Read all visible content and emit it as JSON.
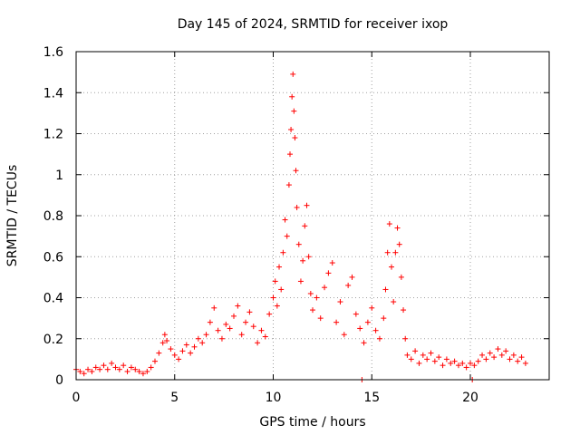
{
  "chart_data": {
    "type": "scatter",
    "title": "Day 145 of 2024, SRMTID for receiver ixop",
    "xlabel": "GPS time / hours",
    "ylabel": "SRMTID / TECUs",
    "xlim": [
      0,
      24
    ],
    "ylim": [
      0,
      1.6
    ],
    "xticks": [
      0,
      5,
      10,
      15,
      20
    ],
    "xtick_labels": [
      "0",
      "5",
      "10",
      "15",
      "20"
    ],
    "yticks": [
      0,
      0.2,
      0.4,
      0.6,
      0.8,
      1.0,
      1.2,
      1.4,
      1.6
    ],
    "ytick_labels": [
      "0",
      "0.2",
      "0.4",
      "0.6",
      "0.8",
      "1",
      "1.2",
      "1.4",
      "1.6"
    ],
    "grid": true,
    "marker": "plus",
    "color": "#ff0000",
    "series": [
      {
        "name": "SRMTID",
        "points": [
          [
            0.0,
            0.05
          ],
          [
            0.2,
            0.04
          ],
          [
            0.4,
            0.03
          ],
          [
            0.6,
            0.05
          ],
          [
            0.8,
            0.04
          ],
          [
            1.0,
            0.06
          ],
          [
            1.2,
            0.05
          ],
          [
            1.4,
            0.07
          ],
          [
            1.6,
            0.05
          ],
          [
            1.8,
            0.08
          ],
          [
            2.0,
            0.06
          ],
          [
            2.2,
            0.05
          ],
          [
            2.4,
            0.07
          ],
          [
            2.6,
            0.04
          ],
          [
            2.8,
            0.06
          ],
          [
            3.0,
            0.05
          ],
          [
            3.2,
            0.04
          ],
          [
            3.4,
            0.03
          ],
          [
            3.6,
            0.04
          ],
          [
            3.8,
            0.06
          ],
          [
            4.0,
            0.09
          ],
          [
            4.2,
            0.13
          ],
          [
            4.4,
            0.18
          ],
          [
            4.5,
            0.22
          ],
          [
            4.6,
            0.19
          ],
          [
            4.8,
            0.15
          ],
          [
            5.0,
            0.12
          ],
          [
            5.2,
            0.1
          ],
          [
            5.4,
            0.14
          ],
          [
            5.6,
            0.17
          ],
          [
            5.8,
            0.13
          ],
          [
            6.0,
            0.16
          ],
          [
            6.2,
            0.2
          ],
          [
            6.4,
            0.18
          ],
          [
            6.6,
            0.22
          ],
          [
            6.8,
            0.28
          ],
          [
            7.0,
            0.35
          ],
          [
            7.2,
            0.24
          ],
          [
            7.4,
            0.2
          ],
          [
            7.6,
            0.27
          ],
          [
            7.8,
            0.25
          ],
          [
            8.0,
            0.31
          ],
          [
            8.2,
            0.36
          ],
          [
            8.4,
            0.22
          ],
          [
            8.6,
            0.28
          ],
          [
            8.8,
            0.33
          ],
          [
            9.0,
            0.26
          ],
          [
            9.2,
            0.18
          ],
          [
            9.4,
            0.24
          ],
          [
            9.6,
            0.21
          ],
          [
            9.8,
            0.32
          ],
          [
            10.0,
            0.4
          ],
          [
            10.1,
            0.48
          ],
          [
            10.2,
            0.36
          ],
          [
            10.3,
            0.55
          ],
          [
            10.4,
            0.44
          ],
          [
            10.5,
            0.62
          ],
          [
            10.6,
            0.78
          ],
          [
            10.7,
            0.7
          ],
          [
            10.8,
            0.95
          ],
          [
            10.85,
            1.1
          ],
          [
            10.9,
            1.22
          ],
          [
            10.95,
            1.38
          ],
          [
            11.0,
            1.49
          ],
          [
            11.05,
            1.31
          ],
          [
            11.1,
            1.18
          ],
          [
            11.15,
            1.02
          ],
          [
            11.2,
            0.84
          ],
          [
            11.3,
            0.66
          ],
          [
            11.4,
            0.48
          ],
          [
            11.5,
            0.58
          ],
          [
            11.6,
            0.75
          ],
          [
            11.7,
            0.85
          ],
          [
            11.8,
            0.6
          ],
          [
            11.9,
            0.42
          ],
          [
            12.0,
            0.34
          ],
          [
            12.2,
            0.4
          ],
          [
            12.4,
            0.3
          ],
          [
            12.6,
            0.45
          ],
          [
            12.8,
            0.52
          ],
          [
            13.0,
            0.57
          ],
          [
            13.2,
            0.28
          ],
          [
            13.4,
            0.38
          ],
          [
            13.6,
            0.22
          ],
          [
            13.8,
            0.46
          ],
          [
            14.0,
            0.5
          ],
          [
            14.2,
            0.32
          ],
          [
            14.4,
            0.25
          ],
          [
            14.6,
            0.18
          ],
          [
            14.8,
            0.28
          ],
          [
            15.0,
            0.35
          ],
          [
            15.2,
            0.24
          ],
          [
            15.4,
            0.2
          ],
          [
            15.6,
            0.3
          ],
          [
            15.7,
            0.44
          ],
          [
            15.8,
            0.62
          ],
          [
            15.9,
            0.76
          ],
          [
            16.0,
            0.55
          ],
          [
            16.1,
            0.38
          ],
          [
            16.2,
            0.62
          ],
          [
            16.3,
            0.74
          ],
          [
            16.4,
            0.66
          ],
          [
            16.5,
            0.5
          ],
          [
            16.6,
            0.34
          ],
          [
            16.7,
            0.2
          ],
          [
            16.8,
            0.12
          ],
          [
            17.0,
            0.1
          ],
          [
            17.2,
            0.14
          ],
          [
            17.4,
            0.08
          ],
          [
            17.6,
            0.12
          ],
          [
            17.8,
            0.1
          ],
          [
            18.0,
            0.13
          ],
          [
            18.2,
            0.09
          ],
          [
            18.4,
            0.11
          ],
          [
            18.6,
            0.07
          ],
          [
            18.8,
            0.1
          ],
          [
            19.0,
            0.08
          ],
          [
            19.2,
            0.09
          ],
          [
            19.4,
            0.07
          ],
          [
            19.6,
            0.08
          ],
          [
            19.8,
            0.06
          ],
          [
            20.0,
            0.08
          ],
          [
            20.1,
            0.0
          ],
          [
            20.2,
            0.07
          ],
          [
            20.4,
            0.09
          ],
          [
            20.6,
            0.12
          ],
          [
            20.8,
            0.1
          ],
          [
            21.0,
            0.13
          ],
          [
            21.2,
            0.11
          ],
          [
            21.4,
            0.15
          ],
          [
            21.6,
            0.12
          ],
          [
            21.8,
            0.14
          ],
          [
            22.0,
            0.1
          ],
          [
            22.2,
            0.12
          ],
          [
            22.4,
            0.09
          ],
          [
            22.6,
            0.11
          ],
          [
            22.8,
            0.08
          ],
          [
            14.5,
            0.0
          ]
        ]
      }
    ]
  }
}
